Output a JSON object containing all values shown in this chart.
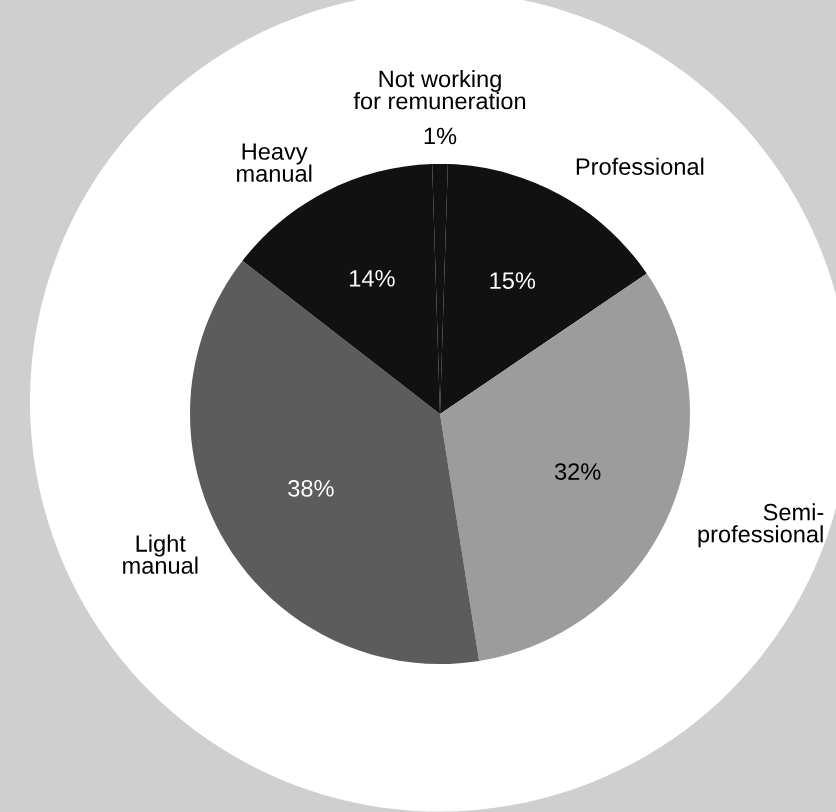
{
  "chart_data": {
    "type": "pie",
    "categories": [
      "Not working\nfor remuneration",
      "Professional",
      "Semi-\nprofessional",
      "Light\nmanual",
      "Heavy\nmanual"
    ],
    "values": [
      1,
      15,
      32,
      38,
      14
    ],
    "colors": [
      "#111111",
      "#111111",
      "#9c9c9c",
      "#5c5c5c",
      "#111111"
    ],
    "value_labels": [
      "1%",
      "15%",
      "32%",
      "38%",
      "14%"
    ]
  }
}
